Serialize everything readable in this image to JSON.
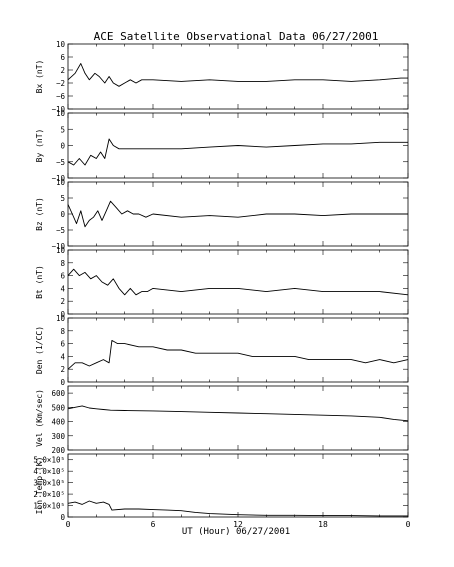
{
  "title": "ACE Satellite Observational Data   06/27/2001",
  "xaxis": {
    "label": "UT (Hour)   06/27/2001",
    "ticks": [
      "0",
      "6",
      "12",
      "18",
      "0"
    ],
    "range": [
      0,
      24
    ]
  },
  "chart_data": [
    {
      "type": "line",
      "id": "bx",
      "ylabel": "Bx (nT)",
      "ylim": [
        -10,
        10
      ],
      "yticks": [
        -10,
        -6,
        -2,
        2,
        6,
        10
      ],
      "ytick_labels": [
        "−10",
        "−6",
        "−2",
        "2",
        "6",
        "10"
      ],
      "series": [
        {
          "x": [
            0,
            0.5,
            0.9,
            1.2,
            1.5,
            1.9,
            2.2,
            2.6,
            2.9,
            3.2,
            3.6,
            4.0,
            4.4,
            4.8,
            5.2,
            5.6,
            6.0,
            8,
            10,
            12,
            14,
            16,
            18,
            20,
            22,
            23.5,
            24
          ],
          "y": [
            -1,
            1,
            4,
            1,
            -1,
            1,
            0,
            -2,
            0,
            -2,
            -3,
            -2,
            -1,
            -2,
            -1,
            -1,
            -1,
            -1.5,
            -1,
            -1.5,
            -1.5,
            -1,
            -1,
            -1.5,
            -1,
            -0.5,
            -0.5
          ]
        }
      ]
    },
    {
      "type": "line",
      "id": "by",
      "ylabel": "By (nT)",
      "ylim": [
        -10,
        10
      ],
      "yticks": [
        -10,
        -5,
        0,
        5,
        10
      ],
      "ytick_labels": [
        "−10",
        "−5",
        "0",
        "5",
        "10"
      ],
      "series": [
        {
          "x": [
            0,
            0.4,
            0.8,
            1.2,
            1.6,
            2.0,
            2.3,
            2.6,
            2.9,
            3.2,
            3.6,
            4.0,
            5,
            6,
            8,
            10,
            12,
            14,
            16,
            18,
            20,
            22,
            24
          ],
          "y": [
            -5,
            -6,
            -4,
            -6,
            -3,
            -4,
            -2,
            -4,
            2,
            0,
            -1,
            -1,
            -1,
            -1,
            -1,
            -0.5,
            0,
            -0.5,
            0,
            0.5,
            0.5,
            1,
            1
          ]
        }
      ]
    },
    {
      "type": "line",
      "id": "bz",
      "ylabel": "Bz (nT)",
      "ylim": [
        -10,
        10
      ],
      "yticks": [
        -10,
        -5,
        0,
        5,
        10
      ],
      "ytick_labels": [
        "−10",
        "−5",
        "0",
        "5",
        "10"
      ],
      "series": [
        {
          "x": [
            0,
            0.3,
            0.6,
            0.9,
            1.2,
            1.5,
            1.8,
            2.1,
            2.4,
            2.7,
            3.0,
            3.4,
            3.8,
            4.2,
            4.6,
            5.0,
            5.5,
            6,
            8,
            10,
            12,
            14,
            16,
            18,
            20,
            22,
            24
          ],
          "y": [
            3,
            0,
            -3,
            1,
            -4,
            -2,
            -1,
            1,
            -2,
            1,
            4,
            2,
            0,
            1,
            0,
            0,
            -1,
            0,
            -1,
            -0.5,
            -1,
            0,
            0,
            -0.5,
            0,
            0,
            0
          ]
        }
      ]
    },
    {
      "type": "line",
      "id": "bt",
      "ylabel": "Bt (nT)",
      "ylim": [
        0,
        10
      ],
      "yticks": [
        0,
        2,
        4,
        6,
        8,
        10
      ],
      "ytick_labels": [
        "0",
        "2",
        "4",
        "6",
        "8",
        "10"
      ],
      "series": [
        {
          "x": [
            0,
            0.4,
            0.8,
            1.2,
            1.6,
            2.0,
            2.4,
            2.8,
            3.2,
            3.6,
            4.0,
            4.4,
            4.8,
            5.2,
            5.6,
            6,
            8,
            10,
            12,
            14,
            16,
            18,
            20,
            22,
            24
          ],
          "y": [
            6,
            7,
            6,
            6.5,
            5.5,
            6,
            5,
            4.5,
            5.5,
            4,
            3,
            4,
            3,
            3.5,
            3.5,
            4,
            3.5,
            4,
            4,
            3.5,
            4,
            3.5,
            3.5,
            3.5,
            3
          ]
        }
      ]
    },
    {
      "type": "line",
      "id": "den",
      "ylabel": "Den (1/CC)",
      "ylim": [
        0,
        10
      ],
      "yticks": [
        0,
        2,
        4,
        6,
        8,
        10
      ],
      "ytick_labels": [
        "0",
        "2",
        "4",
        "6",
        "8",
        "10"
      ],
      "series": [
        {
          "x": [
            0,
            0.5,
            1.0,
            1.5,
            2.0,
            2.5,
            2.9,
            3.1,
            3.5,
            4.0,
            5,
            6,
            7,
            8,
            9,
            10,
            11,
            12,
            13,
            14,
            15,
            16,
            17,
            18,
            19,
            20,
            21,
            22,
            23,
            24
          ],
          "y": [
            2,
            3,
            3,
            2.5,
            3,
            3.5,
            3,
            6.5,
            6,
            6,
            5.5,
            5.5,
            5,
            5,
            4.5,
            4.5,
            4.5,
            4.5,
            4,
            4,
            4,
            4,
            3.5,
            3.5,
            3.5,
            3.5,
            3,
            3.5,
            3,
            3.5
          ]
        }
      ]
    },
    {
      "type": "line",
      "id": "vel",
      "ylabel": "Vel (Km/sec)",
      "ylim": [
        200,
        650
      ],
      "yticks": [
        200,
        300,
        400,
        500,
        600
      ],
      "ytick_labels": [
        "200",
        "300",
        "400",
        "500",
        "600"
      ],
      "series": [
        {
          "x": [
            0,
            0.5,
            1.0,
            1.5,
            2.0,
            2.5,
            3.0,
            4,
            6,
            8,
            10,
            12,
            14,
            16,
            18,
            20,
            22,
            23,
            24
          ],
          "y": [
            490,
            500,
            510,
            495,
            490,
            485,
            480,
            478,
            475,
            470,
            465,
            460,
            455,
            450,
            445,
            440,
            430,
            415,
            405
          ]
        }
      ]
    },
    {
      "type": "line",
      "id": "temp",
      "ylabel": "Ion Temp (K)",
      "ylim": [
        0,
        550000
      ],
      "yticks": [
        0,
        100000,
        200000,
        300000,
        400000,
        500000
      ],
      "ytick_labels": [
        "0",
        "1.0×10⁵",
        "2.0×10⁵",
        "3.0×10⁵",
        "4.0×10⁵",
        "5.0×10⁵"
      ],
      "series": [
        {
          "x": [
            0,
            0.5,
            1.0,
            1.5,
            2.0,
            2.5,
            2.9,
            3.1,
            4,
            5,
            6,
            7,
            8,
            9,
            10,
            12,
            14,
            16,
            18,
            20,
            22,
            24
          ],
          "y": [
            120000,
            130000,
            110000,
            140000,
            120000,
            130000,
            110000,
            60000,
            70000,
            70000,
            65000,
            60000,
            55000,
            40000,
            30000,
            20000,
            15000,
            15000,
            12000,
            12000,
            10000,
            10000
          ]
        }
      ]
    }
  ]
}
